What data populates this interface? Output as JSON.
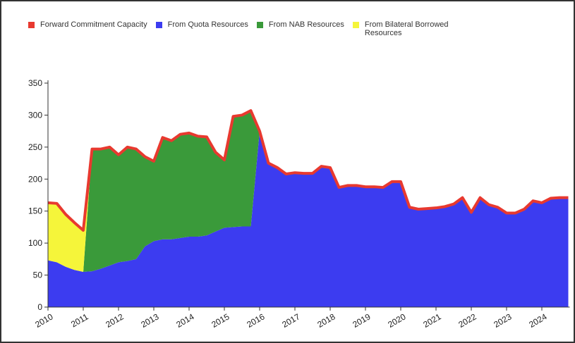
{
  "chart_data": {
    "type": "area",
    "x": [
      2010,
      2010.25,
      2010.5,
      2010.75,
      2011,
      2011.25,
      2011.5,
      2011.75,
      2012,
      2012.25,
      2012.5,
      2012.75,
      2013,
      2013.25,
      2013.5,
      2013.75,
      2014,
      2014.25,
      2014.5,
      2014.75,
      2015,
      2015.25,
      2015.5,
      2015.75,
      2016,
      2016.25,
      2016.5,
      2016.75,
      2017,
      2017.25,
      2017.5,
      2017.75,
      2018,
      2018.25,
      2018.5,
      2018.75,
      2019,
      2019.25,
      2019.5,
      2019.75,
      2020,
      2020.25,
      2020.5,
      2020.75,
      2021,
      2021.25,
      2021.5,
      2021.75,
      2022,
      2022.25,
      2022.5,
      2022.75,
      2023,
      2023.25,
      2023.5,
      2023.75,
      2024,
      2024.25,
      2024.5,
      2024.75
    ],
    "series": [
      {
        "name": "Forward Commitment Capacity",
        "color": "#e8392f",
        "type": "line",
        "values": [
          163,
          162,
          145,
          132,
          120,
          247,
          247,
          250,
          238,
          250,
          247,
          235,
          228,
          265,
          260,
          270,
          272,
          267,
          266,
          242,
          230,
          298,
          300,
          307,
          275,
          225,
          218,
          208,
          210,
          209,
          209,
          220,
          218,
          187,
          190,
          190,
          188,
          188,
          187,
          196,
          196,
          156,
          153,
          154,
          155,
          157,
          161,
          171,
          148,
          171,
          160,
          156,
          147,
          147,
          153,
          166,
          163,
          170,
          171,
          171
        ]
      },
      {
        "name": "From Quota Resources",
        "color": "#3c3cf0",
        "type": "area",
        "values": [
          73,
          70,
          63,
          58,
          55,
          56,
          60,
          65,
          70,
          72,
          75,
          95,
          103,
          106,
          106,
          108,
          110,
          110,
          112,
          118,
          124,
          125,
          126,
          126,
          275,
          225,
          218,
          208,
          210,
          209,
          209,
          220,
          218,
          187,
          190,
          190,
          188,
          188,
          187,
          196,
          196,
          156,
          153,
          154,
          155,
          157,
          161,
          171,
          148,
          171,
          160,
          156,
          147,
          147,
          153,
          166,
          163,
          170,
          171,
          171
        ]
      },
      {
        "name": "From NAB Resources",
        "color": "#3a9a3a",
        "type": "area",
        "values": [
          0,
          0,
          0,
          0,
          0,
          191,
          187,
          185,
          168,
          178,
          172,
          140,
          125,
          159,
          154,
          162,
          162,
          157,
          154,
          124,
          106,
          173,
          174,
          181,
          0,
          0,
          0,
          0,
          0,
          0,
          0,
          0,
          0,
          0,
          0,
          0,
          0,
          0,
          0,
          0,
          0,
          0,
          0,
          0,
          0,
          0,
          0,
          0,
          0,
          0,
          0,
          0,
          0,
          0,
          0,
          0,
          0,
          0,
          0,
          0
        ]
      },
      {
        "name": "From Bilateral Borrowed Resources",
        "color": "#f5f53a",
        "type": "area",
        "values": [
          90,
          92,
          82,
          74,
          65,
          0,
          0,
          0,
          0,
          0,
          0,
          0,
          0,
          0,
          0,
          0,
          0,
          0,
          0,
          0,
          0,
          0,
          0,
          0,
          0,
          0,
          0,
          0,
          0,
          0,
          0,
          0,
          0,
          0,
          0,
          0,
          0,
          0,
          0,
          0,
          0,
          0,
          0,
          0,
          0,
          0,
          0,
          0,
          0,
          0,
          0,
          0,
          0,
          0,
          0,
          0,
          0,
          0,
          0,
          0
        ]
      }
    ],
    "xlim": [
      2010,
      2024.75
    ],
    "xticks": [
      2010,
      2011,
      2012,
      2013,
      2014,
      2015,
      2016,
      2017,
      2018,
      2019,
      2020,
      2021,
      2022,
      2023,
      2024
    ],
    "ylim": [
      0,
      350
    ],
    "yticks": [
      0,
      50,
      100,
      150,
      200,
      250,
      300,
      350
    ],
    "legend": "top",
    "grid": false
  }
}
